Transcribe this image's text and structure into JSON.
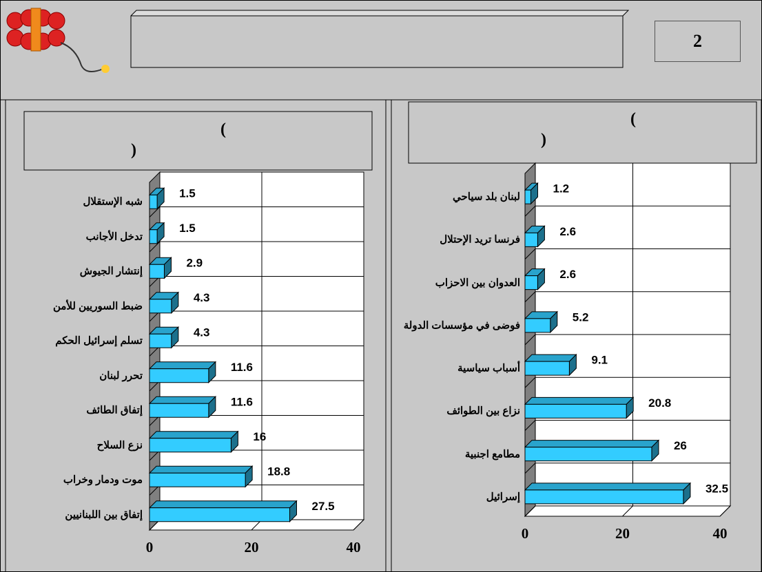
{
  "slide_number": "2",
  "chart_data": [
    {
      "type": "bar",
      "title": [
        "(",
        ")"
      ],
      "categories": [
        "شبه الإستقلال",
        "تدخل الأجانب",
        "إنتشار الجيوش",
        "ضبط السوريين للأمن",
        "تسلم إسرائيل الحكم",
        "تحرر لبنان",
        "إتفاق الطائف",
        "نزع السلاح",
        "موت ودمار وخراب",
        "إتفاق بين اللبنانيين"
      ],
      "values": [
        1.5,
        1.5,
        2.9,
        4.3,
        4.3,
        11.6,
        11.6,
        16,
        18.8,
        27.5
      ],
      "color": "#33ccff",
      "xlim": [
        0,
        40
      ],
      "xticks": [
        0,
        20,
        40
      ],
      "grid": true
    },
    {
      "type": "bar",
      "title": [
        "(",
        ")"
      ],
      "categories": [
        "لبنان بلد سياحي",
        "فرنسا تريد الإحتلال",
        "العدوان بين الاحزاب",
        "فوضى في مؤسسات الدولة",
        "أسباب سياسية",
        "نزاع بين الطوائف",
        "مطامع اجنبية",
        "إسرائيل"
      ],
      "values": [
        1.2,
        2.6,
        2.6,
        5.2,
        9.1,
        20.8,
        26,
        32.5
      ],
      "color": "#33ccff",
      "xlim": [
        0,
        40
      ],
      "xticks": [
        0,
        20,
        40
      ],
      "grid": true
    }
  ]
}
